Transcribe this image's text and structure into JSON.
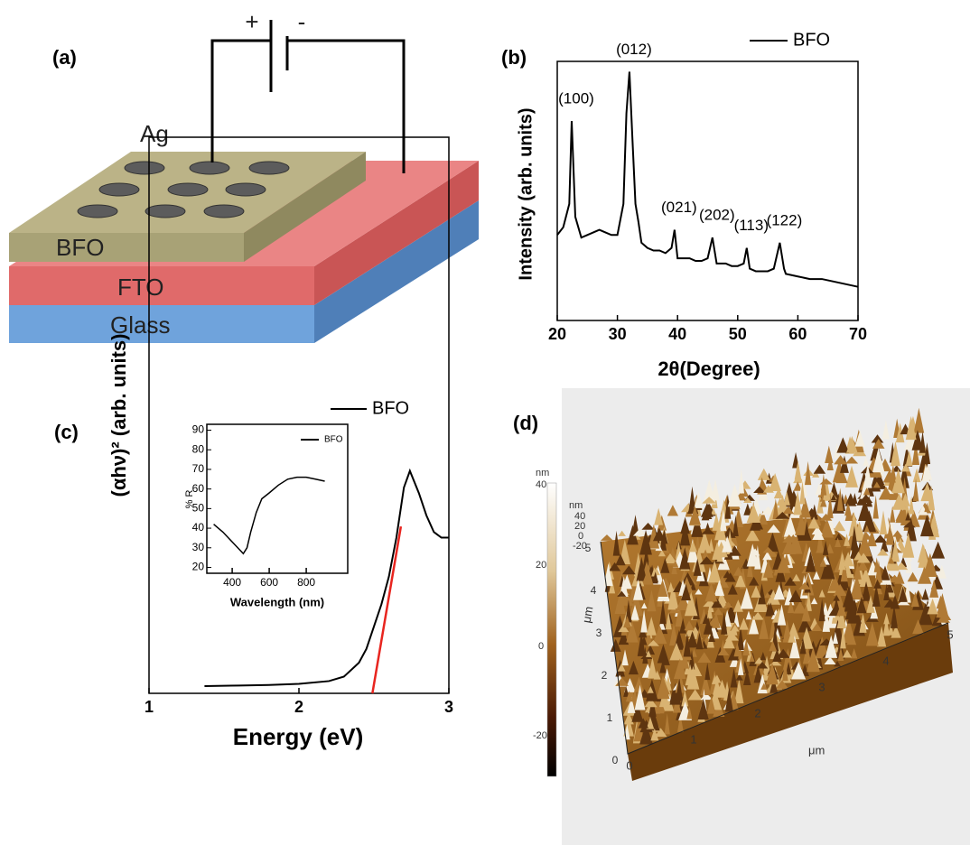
{
  "panel_labels": [
    "(a)",
    "(b)",
    "(c)",
    "(d)"
  ],
  "device": {
    "polarity": [
      "+",
      "-"
    ],
    "layers": [
      "Ag",
      "BFO",
      "FTO",
      "Glass"
    ]
  },
  "chart_data": [
    {
      "type": "line",
      "xlabel": "2θ(Degree)",
      "ylabel": "Intensity (arb. units)",
      "x": [
        20,
        21,
        22,
        22.4,
        23,
        24,
        25,
        26,
        27,
        28,
        29,
        30,
        31,
        31.5,
        32,
        32.5,
        33,
        33.5,
        34,
        35,
        36,
        37,
        38,
        39,
        39.5,
        40,
        41,
        42,
        43,
        44,
        45,
        45.8,
        46.5,
        47,
        48,
        49,
        50,
        51,
        51.5,
        52,
        53,
        54,
        55,
        56,
        57,
        57.7,
        58,
        60,
        62,
        64,
        66,
        68,
        70
      ],
      "series": [
        {
          "name": "BFO",
          "color": "#000000",
          "values": [
            33,
            36,
            45,
            77,
            40,
            32,
            33,
            34,
            35,
            34,
            33,
            33,
            45,
            80,
            96,
            70,
            45,
            38,
            30,
            28,
            27,
            27,
            26,
            28,
            35,
            24,
            24,
            24,
            23,
            23,
            24,
            32,
            22,
            22,
            22,
            21,
            21,
            22,
            28,
            20,
            19,
            19,
            19,
            20,
            30,
            20,
            18,
            17,
            16,
            16,
            15,
            14,
            13
          ]
        }
      ],
      "annotations": [
        {
          "text": "(100)",
          "x": 22.4,
          "y": 77
        },
        {
          "text": "(012)",
          "x": 32,
          "y": 96
        },
        {
          "text": "(021)",
          "x": 39.5,
          "y": 35
        },
        {
          "text": "(202)",
          "x": 45.8,
          "y": 32
        },
        {
          "text": "(113)",
          "x": 51.5,
          "y": 28
        },
        {
          "text": "(122)",
          "x": 57,
          "y": 30
        }
      ],
      "xlim": [
        20,
        70
      ],
      "xticks": [
        20,
        30,
        40,
        50,
        60,
        70
      ],
      "ylim": [
        0,
        100
      ],
      "legend": "upper right"
    },
    {
      "type": "line",
      "xlabel": "Energy (eV)",
      "ylabel": "(αhν)² (arb. units)",
      "x": [
        1.37,
        1.6,
        1.8,
        2.0,
        2.2,
        2.3,
        2.4,
        2.45,
        2.5,
        2.55,
        2.6,
        2.65,
        2.7,
        2.74,
        2.8,
        2.85,
        2.9,
        2.95,
        3.0
      ],
      "series": [
        {
          "name": "BFO",
          "color": "#000000",
          "values": [
            1.3,
            1.4,
            1.5,
            1.7,
            2.2,
            3,
            5.5,
            8,
            12,
            16,
            21,
            28,
            37,
            40,
            36,
            32,
            29,
            28,
            28
          ]
        }
      ],
      "fit": {
        "x": [
          2.49,
          2.68
        ],
        "values": [
          0,
          30
        ],
        "color": "#e8251f"
      },
      "xlim": [
        1,
        3
      ],
      "xticks": [
        1,
        2,
        3
      ],
      "ylim": [
        0,
        100
      ],
      "legend": "upper right"
    },
    {
      "type": "line",
      "xlabel": "Wavelength (nm)",
      "ylabel": "% R",
      "x": [
        300,
        350,
        400,
        430,
        460,
        480,
        500,
        530,
        560,
        600,
        650,
        700,
        750,
        800,
        850,
        900
      ],
      "series": [
        {
          "name": "BFO",
          "color": "#000000",
          "values": [
            42,
            38,
            33,
            30,
            27,
            30,
            38,
            48,
            55,
            58,
            62,
            65,
            66,
            66,
            65,
            64
          ]
        }
      ],
      "xlim": [
        263,
        1024
      ],
      "xticks": [
        400,
        600,
        800
      ],
      "ylim": [
        17,
        93
      ],
      "yticks": [
        20,
        30,
        40,
        50,
        60,
        70,
        80,
        90
      ],
      "legend": "upper right"
    }
  ],
  "afm": {
    "colorbar": {
      "unit": "nm",
      "ticks": [
        40,
        20,
        0,
        -20
      ]
    },
    "z_axis": {
      "unit": "nm",
      "ticks": [
        40,
        20,
        0,
        -20
      ]
    },
    "x_axis": {
      "unit": "μm",
      "ticks": [
        0,
        1,
        2,
        3,
        4,
        5
      ]
    },
    "y_axis": {
      "unit": "μm",
      "ticks": [
        0,
        1,
        2,
        3,
        4,
        5
      ]
    }
  }
}
